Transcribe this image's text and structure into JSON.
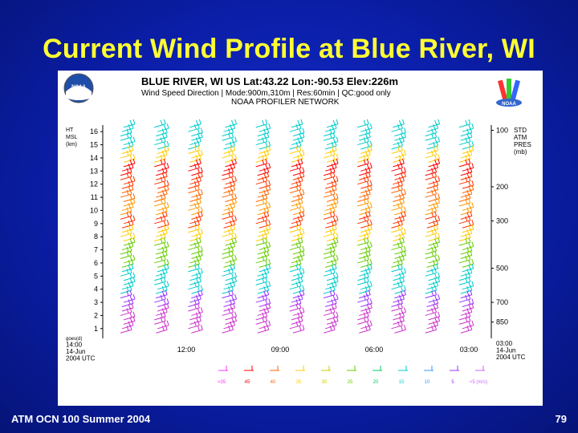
{
  "slide": {
    "title": "Current Wind Profile at Blue River, WI",
    "footer_left": "ATM OCN 100 Summer 2004",
    "page_number": "79"
  },
  "logos": {
    "left": "NOAA",
    "right": "NOAA"
  },
  "chart_data": {
    "type": "wind-barb-time-height",
    "title": "BLUE RIVER, WI US  Lat:43.22  Lon:-90.53  Elev:226m",
    "subtitle": "Wind Speed Direction | Mode:900m,310m | Res:60min | QC:good only",
    "subtitle2": "NOAA PROFILER NETWORK",
    "left_axis": {
      "label_lines": [
        "HT",
        "MSL",
        "(km)"
      ],
      "ticks": [
        1,
        2,
        3,
        4,
        5,
        6,
        7,
        8,
        9,
        10,
        11,
        12,
        13,
        14,
        15,
        16
      ],
      "range": [
        0.5,
        16.5
      ]
    },
    "right_axis": {
      "label_lines": [
        "STD",
        "ATM",
        "PRES",
        "(mb)"
      ],
      "ticks": [
        {
          "label": "100",
          "height_km": 16.1
        },
        {
          "label": "200",
          "height_km": 11.8
        },
        {
          "label": "300",
          "height_km": 9.2
        },
        {
          "label": "500",
          "height_km": 5.6
        },
        {
          "label": "700",
          "height_km": 3.0
        },
        {
          "label": "850",
          "height_km": 1.5
        }
      ]
    },
    "x_axis": {
      "start": [
        "goes(d)",
        "14:00",
        "14-Jun",
        "2004 UTC"
      ],
      "ticks": [
        "12:00",
        "09:00",
        "06:00",
        "03:00"
      ],
      "end": [
        "03:00",
        "14-Jun",
        "2004 UTC"
      ]
    },
    "legend": {
      "labels": [
        ">35",
        "45",
        "40",
        "35",
        "30",
        "25",
        "20",
        "15",
        "10",
        "5",
        "<5 (m/s)"
      ],
      "colors": [
        "#ff33ff",
        "#ff0000",
        "#ff6600",
        "#ffcc00",
        "#cccc00",
        "#66cc00",
        "#00cc66",
        "#00cccc",
        "#3399ff",
        "#9933ff",
        "#cc66ff"
      ]
    },
    "columns": 11,
    "bands": [
      {
        "height_km": 16.0,
        "color": "#00cccc"
      },
      {
        "height_km": 15.0,
        "color": "#00cccc"
      },
      {
        "height_km": 14.0,
        "color": "#ffcc00"
      },
      {
        "height_km": 13.0,
        "color": "#ff0000"
      },
      {
        "height_km": 12.0,
        "color": "#ff3300"
      },
      {
        "height_km": 11.0,
        "color": "#ff6600"
      },
      {
        "height_km": 10.0,
        "color": "#ff9900"
      },
      {
        "height_km": 9.0,
        "color": "#ff3300"
      },
      {
        "height_km": 8.0,
        "color": "#ffcc00"
      },
      {
        "height_km": 7.0,
        "color": "#66cc00"
      },
      {
        "height_km": 6.0,
        "color": "#66cc00"
      },
      {
        "height_km": 5.0,
        "color": "#00cccc"
      },
      {
        "height_km": 4.0,
        "color": "#00cccc"
      },
      {
        "height_km": 3.0,
        "color": "#9933ff"
      },
      {
        "height_km": 2.0,
        "color": "#cc33cc"
      },
      {
        "height_km": 1.0,
        "color": "#cc33cc"
      }
    ]
  }
}
